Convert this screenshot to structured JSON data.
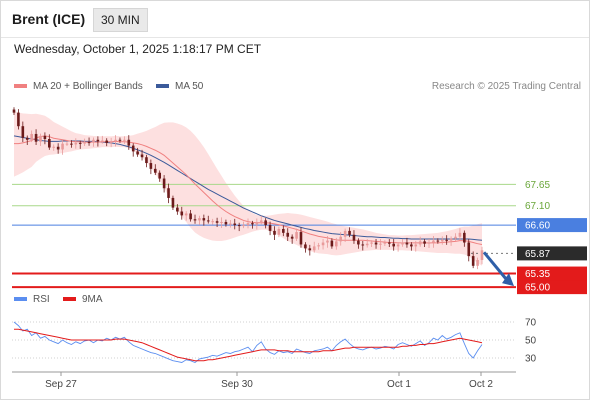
{
  "header": {
    "title": "Brent (ICE)",
    "interval": "30 MIN",
    "datetime": "Wednesday, October 1, 2025 1:18:17 PM CET"
  },
  "legend": {
    "ma20_label": "MA 20 + Bollinger Bands",
    "ma50_label": "MA 50",
    "credit": "Research © 2025 Trading Central"
  },
  "rsi_legend": {
    "rsi_label": "RSI",
    "ma9_label": "9MA"
  },
  "colors": {
    "ma20": "#f08080",
    "bollinger_fill": "#fde0e0",
    "ma50": "#3b5a9a",
    "candle_up": "#e89a9a",
    "candle_down": "#6b1a1a",
    "resistance": "#a8d88a",
    "pivot": "#4a7fe0",
    "support": "#e31b1b",
    "current": "#2b2b2b",
    "rsi": "#5b8ef0",
    "rsi_ma": "#e31b1b",
    "arrow": "#2f5fa8"
  },
  "chart_data": [
    {
      "type": "line",
      "name": "price",
      "ylim": [
        64.9,
        69.8
      ],
      "x_ticks": [
        "Sep 27",
        "Sep 30",
        "Oct 1",
        "Oct 2"
      ],
      "levels": [
        {
          "value": 67.65,
          "label": "67.65",
          "kind": "resistance"
        },
        {
          "value": 67.1,
          "label": "67.10",
          "kind": "resistance"
        },
        {
          "value": 66.6,
          "label": "66.60",
          "kind": "pivot"
        },
        {
          "value": 65.87,
          "label": "65.87",
          "kind": "current"
        },
        {
          "value": 65.35,
          "label": "65.35",
          "kind": "support"
        },
        {
          "value": 65.0,
          "label": "65.00",
          "kind": "support"
        }
      ],
      "close": [
        69.5,
        69.15,
        68.85,
        68.8,
        68.95,
        68.75,
        68.9,
        68.82,
        68.6,
        68.62,
        68.55,
        68.7,
        68.7,
        68.68,
        68.72,
        68.7,
        68.74,
        68.73,
        68.8,
        68.76,
        68.78,
        68.72,
        68.76,
        68.8,
        68.78,
        68.8,
        68.65,
        68.5,
        68.42,
        68.35,
        68.2,
        68.05,
        67.95,
        67.8,
        67.55,
        67.3,
        67.05,
        66.95,
        66.85,
        66.9,
        66.75,
        66.72,
        66.78,
        66.72,
        66.7,
        66.7,
        66.66,
        66.68,
        66.62,
        66.64,
        66.6,
        66.58,
        66.6,
        66.65,
        66.62,
        66.68,
        66.72,
        66.6,
        66.45,
        66.35,
        66.5,
        66.4,
        66.3,
        66.25,
        66.42,
        66.1,
        66.0,
        65.95,
        66.05,
        66.08,
        66.15,
        66.2,
        66.05,
        66.18,
        66.3,
        66.45,
        66.35,
        66.2,
        66.1,
        66.08,
        66.12,
        66.15,
        66.1,
        66.12,
        66.15,
        66.12,
        66.05,
        66.1,
        66.15,
        66.1,
        66.05,
        66.1,
        66.18,
        66.12,
        66.15,
        66.2,
        66.18,
        66.22,
        66.2,
        66.25,
        66.3,
        66.4,
        66.15,
        65.8,
        65.55,
        65.7,
        65.95
      ],
      "ma20": [
        68.7,
        68.7,
        68.72,
        68.75,
        68.78,
        68.85,
        68.88,
        68.9,
        68.88,
        68.84,
        68.82,
        68.8,
        68.78,
        68.76,
        68.75,
        68.75,
        68.74,
        68.74,
        68.74,
        68.74,
        68.75,
        68.75,
        68.75,
        68.76,
        68.75,
        68.75,
        68.74,
        68.72,
        68.7,
        68.67,
        68.63,
        68.58,
        68.53,
        68.47,
        68.4,
        68.3,
        68.2,
        68.1,
        68.0,
        67.9,
        67.78,
        67.66,
        67.55,
        67.44,
        67.33,
        67.22,
        67.12,
        67.03,
        66.95,
        66.88,
        66.82,
        66.77,
        66.72,
        66.69,
        66.67,
        66.66,
        66.66,
        66.66,
        66.65,
        66.63,
        66.61,
        66.58,
        66.55,
        66.52,
        66.49,
        66.45,
        66.41,
        66.37,
        66.34,
        66.31,
        66.29,
        66.27,
        66.24,
        66.22,
        66.21,
        66.21,
        66.21,
        66.21,
        66.21,
        66.21,
        66.2,
        66.19,
        66.18,
        66.17,
        66.16,
        66.15,
        66.15,
        66.14,
        66.14,
        66.14,
        66.14,
        66.14,
        66.14,
        66.14,
        66.14,
        66.14,
        66.14,
        66.15,
        66.16,
        66.17,
        66.18,
        66.2,
        66.2,
        66.18,
        66.15,
        66.12,
        66.1
      ],
      "bb_width": [
        0.85,
        0.8,
        0.76,
        0.72,
        0.68,
        0.62,
        0.57,
        0.52,
        0.47,
        0.42,
        0.38,
        0.34,
        0.3,
        0.26,
        0.22,
        0.2,
        0.18,
        0.17,
        0.16,
        0.15,
        0.14,
        0.14,
        0.14,
        0.14,
        0.14,
        0.14,
        0.16,
        0.2,
        0.26,
        0.32,
        0.4,
        0.5,
        0.6,
        0.72,
        0.84,
        0.95,
        1.05,
        1.12,
        1.18,
        1.22,
        1.25,
        1.25,
        1.22,
        1.17,
        1.1,
        1.02,
        0.93,
        0.84,
        0.74,
        0.64,
        0.54,
        0.45,
        0.37,
        0.3,
        0.24,
        0.2,
        0.18,
        0.18,
        0.2,
        0.24,
        0.28,
        0.32,
        0.36,
        0.38,
        0.4,
        0.42,
        0.43,
        0.44,
        0.44,
        0.44,
        0.43,
        0.42,
        0.41,
        0.4,
        0.38,
        0.36,
        0.34,
        0.32,
        0.3,
        0.28,
        0.26,
        0.24,
        0.22,
        0.21,
        0.2,
        0.19,
        0.19,
        0.19,
        0.19,
        0.2,
        0.2,
        0.21,
        0.22,
        0.23,
        0.24,
        0.25,
        0.26,
        0.27,
        0.28,
        0.3,
        0.32,
        0.34,
        0.36,
        0.38,
        0.44,
        0.5,
        0.55
      ],
      "ma50": [
        68.9,
        68.88,
        68.86,
        68.84,
        68.82,
        68.8,
        68.78,
        68.77,
        68.76,
        68.76,
        68.76,
        68.77,
        68.77,
        68.77,
        68.77,
        68.77,
        68.76,
        68.76,
        68.76,
        68.75,
        68.74,
        68.73,
        68.72,
        68.7,
        68.68,
        68.65,
        68.62,
        68.58,
        68.54,
        68.5,
        68.45,
        68.4,
        68.34,
        68.28,
        68.22,
        68.15,
        68.08,
        68.01,
        67.94,
        67.87,
        67.8,
        67.73,
        67.66,
        67.59,
        67.52,
        67.46,
        67.4,
        67.34,
        67.28,
        67.22,
        67.16,
        67.1,
        67.04,
        66.99,
        66.94,
        66.89,
        66.84,
        66.8,
        66.76,
        66.72,
        66.69,
        66.66,
        66.63,
        66.6,
        66.57,
        66.54,
        66.51,
        66.49,
        66.46,
        66.44,
        66.42,
        66.4,
        66.38,
        66.37,
        66.36,
        66.35,
        66.34,
        66.33,
        66.32,
        66.31,
        66.3,
        66.3,
        66.29,
        66.28,
        66.28,
        66.27,
        66.26,
        66.26,
        66.25,
        66.25,
        66.24,
        66.24,
        66.24,
        66.24,
        66.24,
        66.24,
        66.24,
        66.24,
        66.24,
        66.24,
        66.24,
        66.24,
        66.24,
        66.24,
        66.23,
        66.22,
        66.21
      ]
    },
    {
      "type": "line",
      "name": "RSI",
      "ylim": [
        20,
        80
      ],
      "y_ticks": [
        70,
        50,
        30
      ],
      "rsi": [
        70,
        66,
        60,
        62,
        55,
        58,
        52,
        54,
        50,
        48,
        46,
        50,
        47,
        45,
        48,
        46,
        49,
        50,
        47,
        50,
        49,
        52,
        50,
        53,
        51,
        53,
        48,
        44,
        42,
        40,
        38,
        36,
        35,
        33,
        31,
        29,
        27,
        26,
        25,
        28,
        27,
        25,
        29,
        30,
        31,
        33,
        32,
        34,
        36,
        35,
        37,
        38,
        40,
        42,
        37,
        44,
        48,
        40,
        36,
        34,
        38,
        36,
        37,
        35,
        40,
        38,
        36,
        35,
        38,
        39,
        40,
        42,
        38,
        44,
        48,
        51,
        46,
        42,
        40,
        39,
        41,
        42,
        40,
        41,
        43,
        42,
        40,
        45,
        47,
        45,
        43,
        46,
        49,
        44,
        47,
        52,
        50,
        55,
        51,
        53,
        56,
        58,
        46,
        35,
        30,
        38,
        45
      ],
      "ma9": [
        62,
        62,
        61,
        60,
        59,
        58,
        57,
        56,
        55,
        54,
        53,
        52,
        51,
        50,
        50,
        50,
        50,
        50,
        50,
        50,
        50,
        50,
        50,
        51,
        51,
        51,
        50,
        49,
        48,
        47,
        45,
        43,
        41,
        39,
        37,
        35,
        33,
        31,
        30,
        29,
        28,
        27,
        27,
        27,
        28,
        28,
        29,
        30,
        31,
        32,
        33,
        34,
        35,
        36,
        37,
        38,
        39,
        39,
        39,
        39,
        38,
        38,
        38,
        37,
        37,
        37,
        37,
        37,
        37,
        37,
        38,
        38,
        38,
        39,
        40,
        41,
        41,
        42,
        42,
        42,
        42,
        42,
        42,
        42,
        42,
        42,
        42,
        42,
        43,
        43,
        44,
        44,
        45,
        45,
        46,
        46,
        47,
        48,
        49,
        50,
        51,
        52,
        51,
        50,
        49,
        48,
        47
      ]
    }
  ]
}
